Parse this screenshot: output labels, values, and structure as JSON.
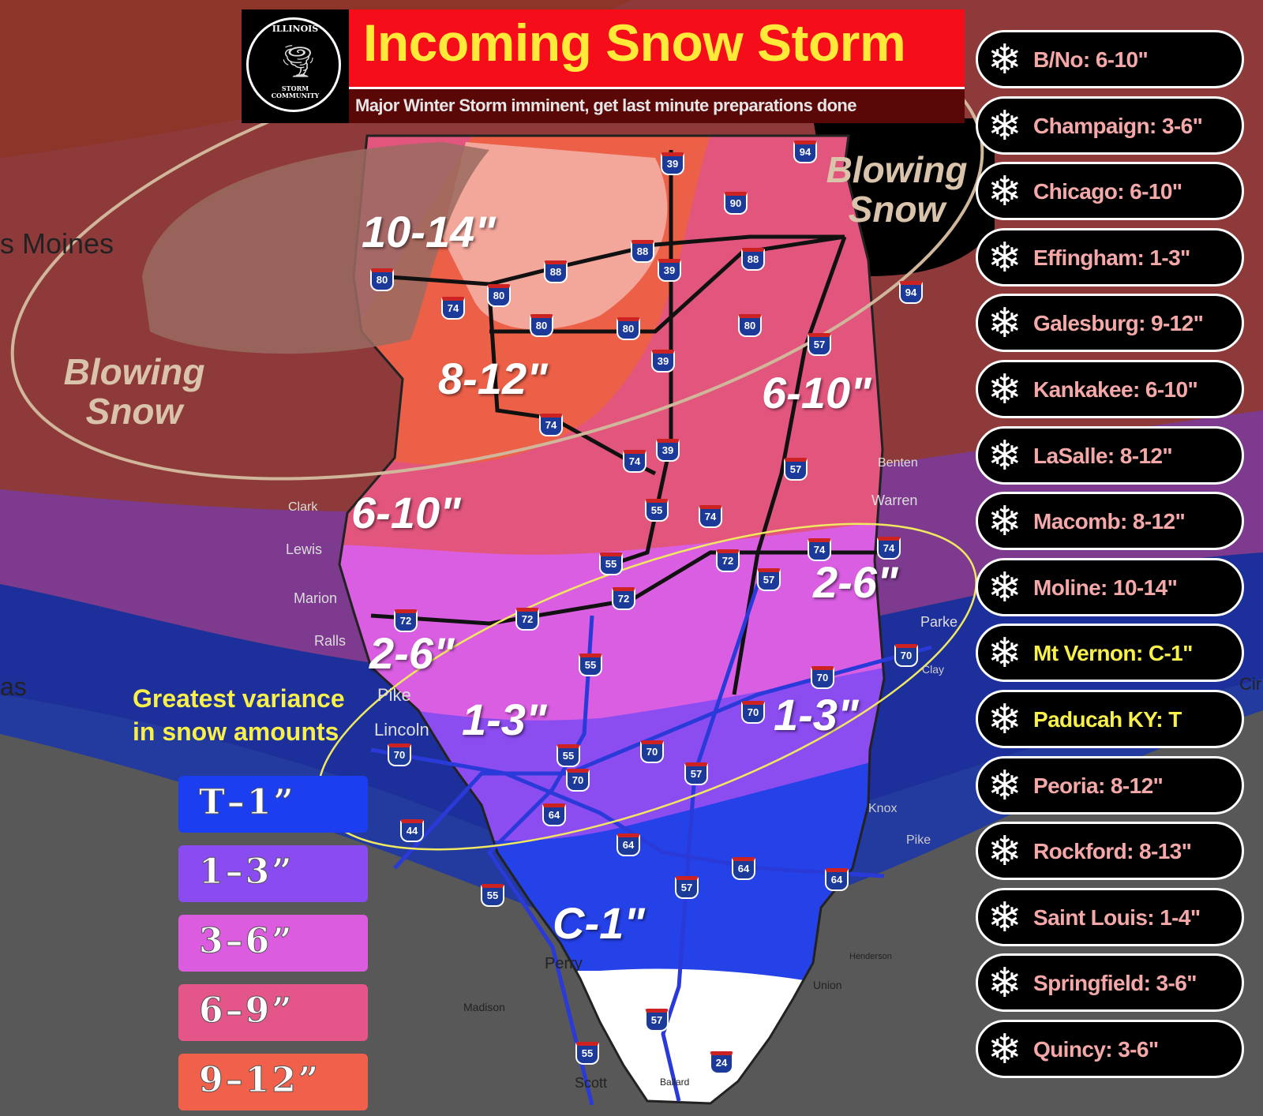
{
  "header": {
    "logo_text_top": "ILLINOIS",
    "logo_text_bottom": "STORM COMMUNITY",
    "title": "Incoming Snow Storm",
    "subtitle": "Major Winter Storm imminent, get last minute preparations done"
  },
  "colors": {
    "title_bg": "#f50d1a",
    "title_text": "#ffea3a",
    "pink_text": "#f5a8a8",
    "yellow_text": "#f8f04a"
  },
  "forecasts": [
    {
      "text": "B/No: 6-10\"",
      "color": "#f5a8a8"
    },
    {
      "text": "Champaign: 3-6\"",
      "color": "#f5a8a8"
    },
    {
      "text": "Chicago: 6-10\"",
      "color": "#f5a8a8"
    },
    {
      "text": "Effingham: 1-3\"",
      "color": "#f5a8a8"
    },
    {
      "text": "Galesburg: 9-12\"",
      "color": "#f5a8a8"
    },
    {
      "text": "Kankakee: 6-10\"",
      "color": "#f5a8a8"
    },
    {
      "text": "LaSalle: 8-12\"",
      "color": "#f5a8a8"
    },
    {
      "text": "Macomb: 8-12\"",
      "color": "#f5a8a8"
    },
    {
      "text": "Moline: 10-14\"",
      "color": "#f5a8a8"
    },
    {
      "text": "Mt Vernon: C-1\"",
      "color": "#f8f04a"
    },
    {
      "text": "Paducah KY: T",
      "color": "#f8f04a"
    },
    {
      "text": "Peoria: 8-12\"",
      "color": "#f5a8a8"
    },
    {
      "text": "Rockford: 8-13\"",
      "color": "#f5a8a8"
    },
    {
      "text": "Saint Louis: 1-4\"",
      "color": "#f5a8a8"
    },
    {
      "text": "Springfield: 3-6\"",
      "color": "#f5a8a8"
    },
    {
      "text": "Quincy: 3-6\"",
      "color": "#f5a8a8"
    }
  ],
  "legend": [
    {
      "label": "T–1”",
      "color": "#1a3ef0"
    },
    {
      "label": "1–3”",
      "color": "#8a4cf0"
    },
    {
      "label": "3–6”",
      "color": "#dc5ce0"
    },
    {
      "label": "6–9”",
      "color": "#e4558a"
    },
    {
      "label": "9–12”",
      "color": "#f0604a"
    }
  ],
  "map": {
    "amount_labels": [
      "10-14\"",
      "8-12\"",
      "6-10\"",
      "6-10\"",
      "2-6\"",
      "2-6\"",
      "1-3\"",
      "1-3\"",
      "C-1\""
    ],
    "blowing_snow": "Blowing Snow",
    "variance_note": "Greatest variance in snow amounts",
    "places": [
      "s Moines",
      "Lincoln",
      "Pike",
      "Lewis",
      "Marion",
      "Ralls",
      "Clark",
      "Benten",
      "Warren",
      "Parke",
      "Clay",
      "Knox",
      "Pike",
      "Union",
      "Henderson",
      "Madison",
      "Scott",
      "Perry",
      "Ballard",
      "as",
      "Cir"
    ],
    "interstates": [
      "39",
      "94",
      "90",
      "88",
      "80",
      "74",
      "55",
      "57",
      "72",
      "70",
      "64",
      "24",
      "44"
    ],
    "icon": "snowflake-icon"
  }
}
